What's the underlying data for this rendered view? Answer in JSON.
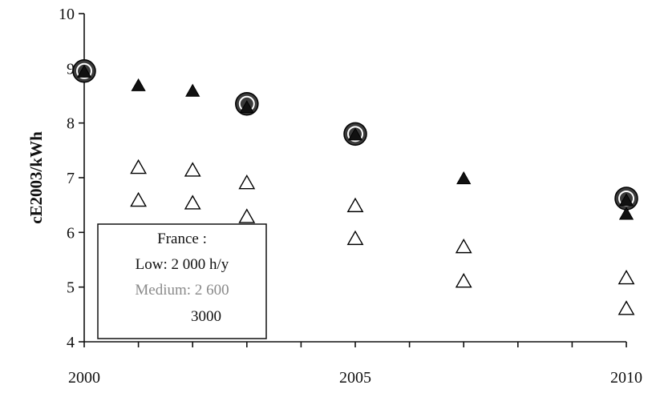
{
  "chart_data": {
    "type": "scatter",
    "title": "",
    "xlabel": "",
    "ylabel": "cE2003/kWh",
    "xlim": [
      2000,
      2010
    ],
    "ylim": [
      4,
      10
    ],
    "x_tick_labels": [
      "2000",
      "2005",
      "2010"
    ],
    "x_ticks": [
      2000,
      2005,
      2010
    ],
    "y_ticks": [
      4,
      5,
      6,
      7,
      8,
      9,
      10
    ],
    "y_tick_labels": [
      "4",
      "5",
      "6",
      "7",
      "8",
      "9",
      "10"
    ],
    "grid": false,
    "legend_lines": [
      "France :",
      "Low: 2 000 h/y",
      "Medium: 2 600",
      "3000"
    ],
    "series": [
      {
        "marker": "circle",
        "points": [
          [
            2000,
            8.95
          ],
          [
            2003,
            8.35
          ],
          [
            2005,
            7.8
          ],
          [
            2010,
            6.62
          ]
        ]
      },
      {
        "marker": "triangle-filled",
        "points": [
          [
            2001,
            8.7
          ],
          [
            2002,
            8.6
          ],
          [
            2003,
            8.3
          ],
          [
            2005,
            7.8
          ],
          [
            2007,
            7.0
          ],
          [
            2010,
            6.35
          ],
          [
            2000,
            8.95
          ],
          [
            2010,
            6.6
          ]
        ]
      },
      {
        "marker": "triangle-open",
        "points": [
          [
            2001,
            7.2
          ],
          [
            2002,
            7.15
          ],
          [
            2003,
            6.92
          ],
          [
            2005,
            6.5
          ],
          [
            2007,
            5.75
          ],
          [
            2010,
            5.18
          ]
        ]
      },
      {
        "marker": "triangle-open",
        "points": [
          [
            2001,
            6.6
          ],
          [
            2002,
            6.55
          ],
          [
            2003,
            6.3
          ],
          [
            2005,
            5.9
          ],
          [
            2007,
            5.12
          ],
          [
            2010,
            4.62
          ]
        ]
      }
    ],
    "colors": {
      "axis": "#111111",
      "marker_fill": "#111111",
      "circle_fill": "#3a3a3a",
      "background": "#ffffff"
    }
  }
}
